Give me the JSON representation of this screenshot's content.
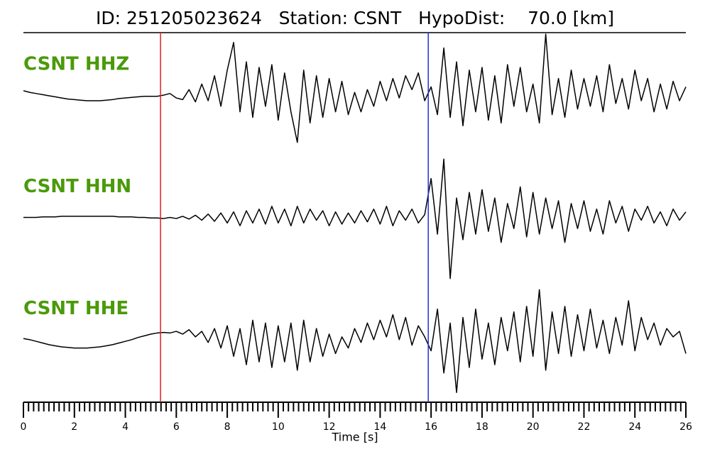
{
  "chart_data": {
    "type": "seismogram",
    "title": "ID: 251205023624   Station: CSNT   HypoDist:    70.0 [km]",
    "x_label": "Time [s]",
    "xlim": [
      0,
      26
    ],
    "xticks": [
      0,
      2,
      4,
      6,
      8,
      10,
      12,
      14,
      16,
      18,
      20,
      22,
      24,
      26
    ],
    "xminorticks": [
      0.2,
      0.4,
      0.6,
      0.8,
      1,
      1.2,
      1.4,
      1.6,
      1.8,
      2.2,
      2.4,
      2.6,
      2.8,
      3,
      3.2,
      3.4,
      3.6,
      3.8,
      4.2,
      4.4,
      4.6,
      4.8,
      5,
      5.2,
      5.4,
      5.6,
      5.8,
      6.2,
      6.4,
      6.6,
      6.8,
      7,
      7.2,
      7.4,
      7.6,
      7.8,
      8.2,
      8.4,
      8.6,
      8.8,
      9,
      9.2,
      9.4,
      9.6,
      9.8,
      10.2,
      10.4,
      10.6,
      10.8,
      11,
      11.2,
      11.4,
      11.6,
      11.8,
      12.2,
      12.4,
      12.6,
      12.8,
      13,
      13.2,
      13.4,
      13.6,
      13.8,
      14.2,
      14.4,
      14.6,
      14.8,
      15,
      15.2,
      15.4,
      15.6,
      15.8,
      16.2,
      16.4,
      16.6,
      16.8,
      17,
      17.2,
      17.4,
      17.6,
      17.8,
      18.2,
      18.4,
      18.6,
      18.8,
      19,
      19.2,
      19.4,
      19.6,
      19.8,
      20.2,
      20.4,
      20.6,
      20.8,
      21,
      21.2,
      21.4,
      21.6,
      21.8,
      22.2,
      22.4,
      22.6,
      22.8,
      23,
      23.2,
      23.4,
      23.6,
      23.8,
      24.2,
      24.4,
      24.6,
      24.8,
      25,
      25.2,
      25.4,
      25.6,
      25.8
    ],
    "ylim": [
      -1.1,
      1.1
    ],
    "picks": [
      {
        "x": 5.38,
        "color": "#e02020"
      },
      {
        "x": 15.89,
        "color": "#2030e0"
      }
    ],
    "label_color": "#4a9a0a",
    "x": [
      0,
      0.25,
      0.5,
      0.75,
      1,
      1.25,
      1.5,
      1.75,
      2,
      2.25,
      2.5,
      2.75,
      3,
      3.25,
      3.5,
      3.75,
      4,
      4.25,
      4.5,
      4.75,
      5,
      5.25,
      5.5,
      5.75,
      6,
      6.25,
      6.5,
      6.75,
      7,
      7.25,
      7.5,
      7.75,
      8,
      8.25,
      8.5,
      8.75,
      9,
      9.25,
      9.5,
      9.75,
      10,
      10.25,
      10.5,
      10.75,
      11,
      11.25,
      11.5,
      11.75,
      12,
      12.25,
      12.5,
      12.75,
      13,
      13.25,
      13.5,
      13.75,
      14,
      14.25,
      14.5,
      14.75,
      15,
      15.25,
      15.5,
      15.75,
      16,
      16.25,
      16.5,
      16.75,
      17,
      17.25,
      17.5,
      17.75,
      18,
      18.25,
      18.5,
      18.75,
      19,
      19.25,
      19.5,
      19.75,
      20,
      20.25,
      20.5,
      20.75,
      21,
      21.25,
      21.5,
      21.75,
      22,
      22.25,
      22.5,
      22.75,
      23,
      23.25,
      23.5,
      23.75,
      24,
      24.25,
      24.5,
      24.75,
      25,
      25.25,
      25.5,
      25.75,
      26
    ],
    "series": [
      {
        "name": "CSNT HHZ",
        "color": "#000000",
        "values": [
          0.08,
          0.05,
          0.03,
          0.01,
          -0.01,
          -0.03,
          -0.05,
          -0.07,
          -0.08,
          -0.09,
          -0.1,
          -0.1,
          -0.1,
          -0.09,
          -0.08,
          -0.06,
          -0.05,
          -0.04,
          -0.03,
          -0.02,
          -0.02,
          -0.02,
          0.0,
          0.03,
          -0.05,
          -0.08,
          0.1,
          -0.12,
          0.2,
          -0.1,
          0.35,
          -0.2,
          0.45,
          0.95,
          -0.3,
          0.6,
          -0.4,
          0.5,
          -0.2,
          0.55,
          -0.45,
          0.4,
          -0.3,
          -0.85,
          0.45,
          -0.5,
          0.35,
          -0.4,
          0.3,
          -0.3,
          0.25,
          -0.35,
          0.05,
          -0.3,
          0.1,
          -0.2,
          0.25,
          -0.1,
          0.3,
          -0.05,
          0.35,
          0.1,
          0.4,
          -0.1,
          0.15,
          -0.35,
          0.85,
          -0.4,
          0.6,
          -0.55,
          0.45,
          -0.3,
          0.5,
          -0.45,
          0.35,
          -0.5,
          0.55,
          -0.2,
          0.5,
          -0.3,
          0.2,
          -0.5,
          1.1,
          -0.35,
          0.3,
          -0.4,
          0.45,
          -0.25,
          0.3,
          -0.2,
          0.35,
          -0.3,
          0.55,
          -0.15,
          0.3,
          -0.25,
          0.45,
          -0.1,
          0.3,
          -0.3,
          0.2,
          -0.25,
          0.25,
          -0.1,
          0.15
        ]
      },
      {
        "name": "CSNT HHN",
        "color": "#000000",
        "values": [
          0,
          0,
          0,
          0.01,
          0.01,
          0.01,
          0.02,
          0.02,
          0.02,
          0.02,
          0.02,
          0.02,
          0.02,
          0.02,
          0.02,
          0.01,
          0.01,
          0.01,
          0,
          0,
          -0.01,
          -0.01,
          -0.02,
          0.0,
          -0.02,
          0.02,
          -0.03,
          0.04,
          -0.05,
          0.06,
          -0.07,
          0.08,
          -0.1,
          0.1,
          -0.15,
          0.12,
          -0.1,
          0.15,
          -0.12,
          0.2,
          -0.1,
          0.15,
          -0.15,
          0.2,
          -0.1,
          0.15,
          -0.05,
          0.12,
          -0.15,
          0.1,
          -0.12,
          0.08,
          -0.1,
          0.12,
          -0.08,
          0.15,
          -0.12,
          0.2,
          -0.15,
          0.12,
          -0.05,
          0.15,
          -0.1,
          0.05,
          0.7,
          -0.3,
          1.05,
          -1.1,
          0.35,
          -0.4,
          0.45,
          -0.3,
          0.5,
          -0.25,
          0.35,
          -0.45,
          0.25,
          -0.2,
          0.55,
          -0.35,
          0.45,
          -0.3,
          0.35,
          -0.2,
          0.3,
          -0.45,
          0.25,
          -0.2,
          0.3,
          -0.25,
          0.15,
          -0.3,
          0.3,
          -0.1,
          0.2,
          -0.25,
          0.15,
          -0.05,
          0.2,
          -0.1,
          0.1,
          -0.15,
          0.15,
          -0.05,
          0.1
        ]
      },
      {
        "name": "CSNT HHE",
        "color": "#000000",
        "values": [
          0.02,
          0.0,
          -0.03,
          -0.06,
          -0.09,
          -0.11,
          -0.13,
          -0.14,
          -0.15,
          -0.15,
          -0.15,
          -0.14,
          -0.13,
          -0.11,
          -0.09,
          -0.06,
          -0.03,
          0.0,
          0.04,
          0.07,
          0.1,
          0.12,
          0.13,
          0.12,
          0.15,
          0.1,
          0.18,
          0.05,
          0.15,
          -0.05,
          0.2,
          -0.15,
          0.25,
          -0.3,
          0.2,
          -0.45,
          0.35,
          -0.4,
          0.3,
          -0.5,
          0.25,
          -0.4,
          0.3,
          -0.55,
          0.35,
          -0.4,
          0.2,
          -0.3,
          0.1,
          -0.25,
          0.05,
          -0.15,
          0.2,
          -0.05,
          0.3,
          0.0,
          0.35,
          0.05,
          0.45,
          0.0,
          0.4,
          -0.1,
          0.25,
          0.05,
          -0.2,
          0.55,
          -0.6,
          0.3,
          -0.95,
          0.4,
          -0.5,
          0.55,
          -0.35,
          0.3,
          -0.45,
          0.4,
          -0.2,
          0.5,
          -0.4,
          0.6,
          -0.3,
          0.9,
          -0.55,
          0.5,
          -0.25,
          0.6,
          -0.3,
          0.45,
          -0.2,
          0.55,
          -0.15,
          0.35,
          -0.25,
          0.4,
          -0.1,
          0.7,
          -0.2,
          0.4,
          0.0,
          0.3,
          -0.1,
          0.2,
          0.05,
          0.15,
          -0.25
        ]
      }
    ]
  }
}
